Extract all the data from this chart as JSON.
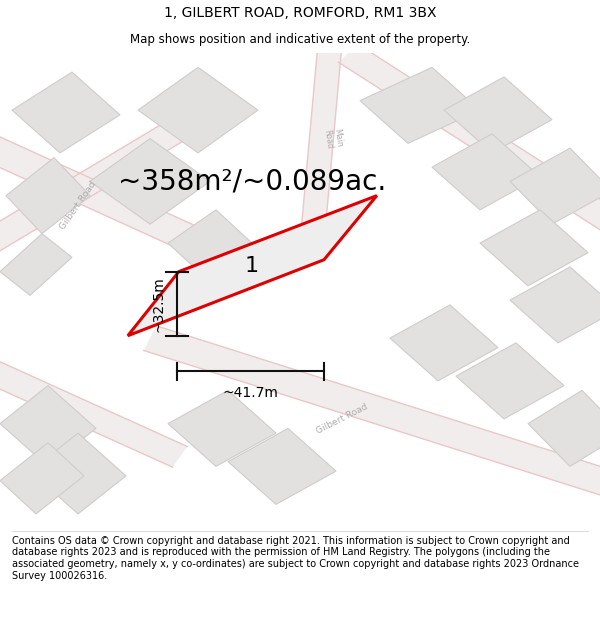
{
  "title": "1, GILBERT ROAD, ROMFORD, RM1 3BX",
  "subtitle": "Map shows position and indicative extent of the property.",
  "area_text": "~358m²/~0.089ac.",
  "dim_width": "~41.7m",
  "dim_height": "~32.5m",
  "label_number": "1",
  "footer": "Contains OS data © Crown copyright and database right 2021. This information is subject to Crown copyright and database rights 2023 and is reproduced with the permission of HM Land Registry. The polygons (including the associated geometry, namely x, y co-ordinates) are subject to Crown copyright and database rights 2023 Ordnance Survey 100026316.",
  "bg_color": "#ffffff",
  "map_bg": "#f7f5f5",
  "road_fill": "#f2eded",
  "road_line": "#e8c8c8",
  "building_fill": "#e3e0e0",
  "building_edge": "#d0cccc",
  "plot_edge_color": "#dd0000",
  "plot_fill": "#eeeeee",
  "dim_line_color": "#111111",
  "road_label_color": "#b0aaaa",
  "title_fontsize": 10,
  "subtitle_fontsize": 8.5,
  "area_fontsize": 20,
  "dim_fontsize": 10,
  "label_fontsize": 16,
  "footer_fontsize": 7.0
}
